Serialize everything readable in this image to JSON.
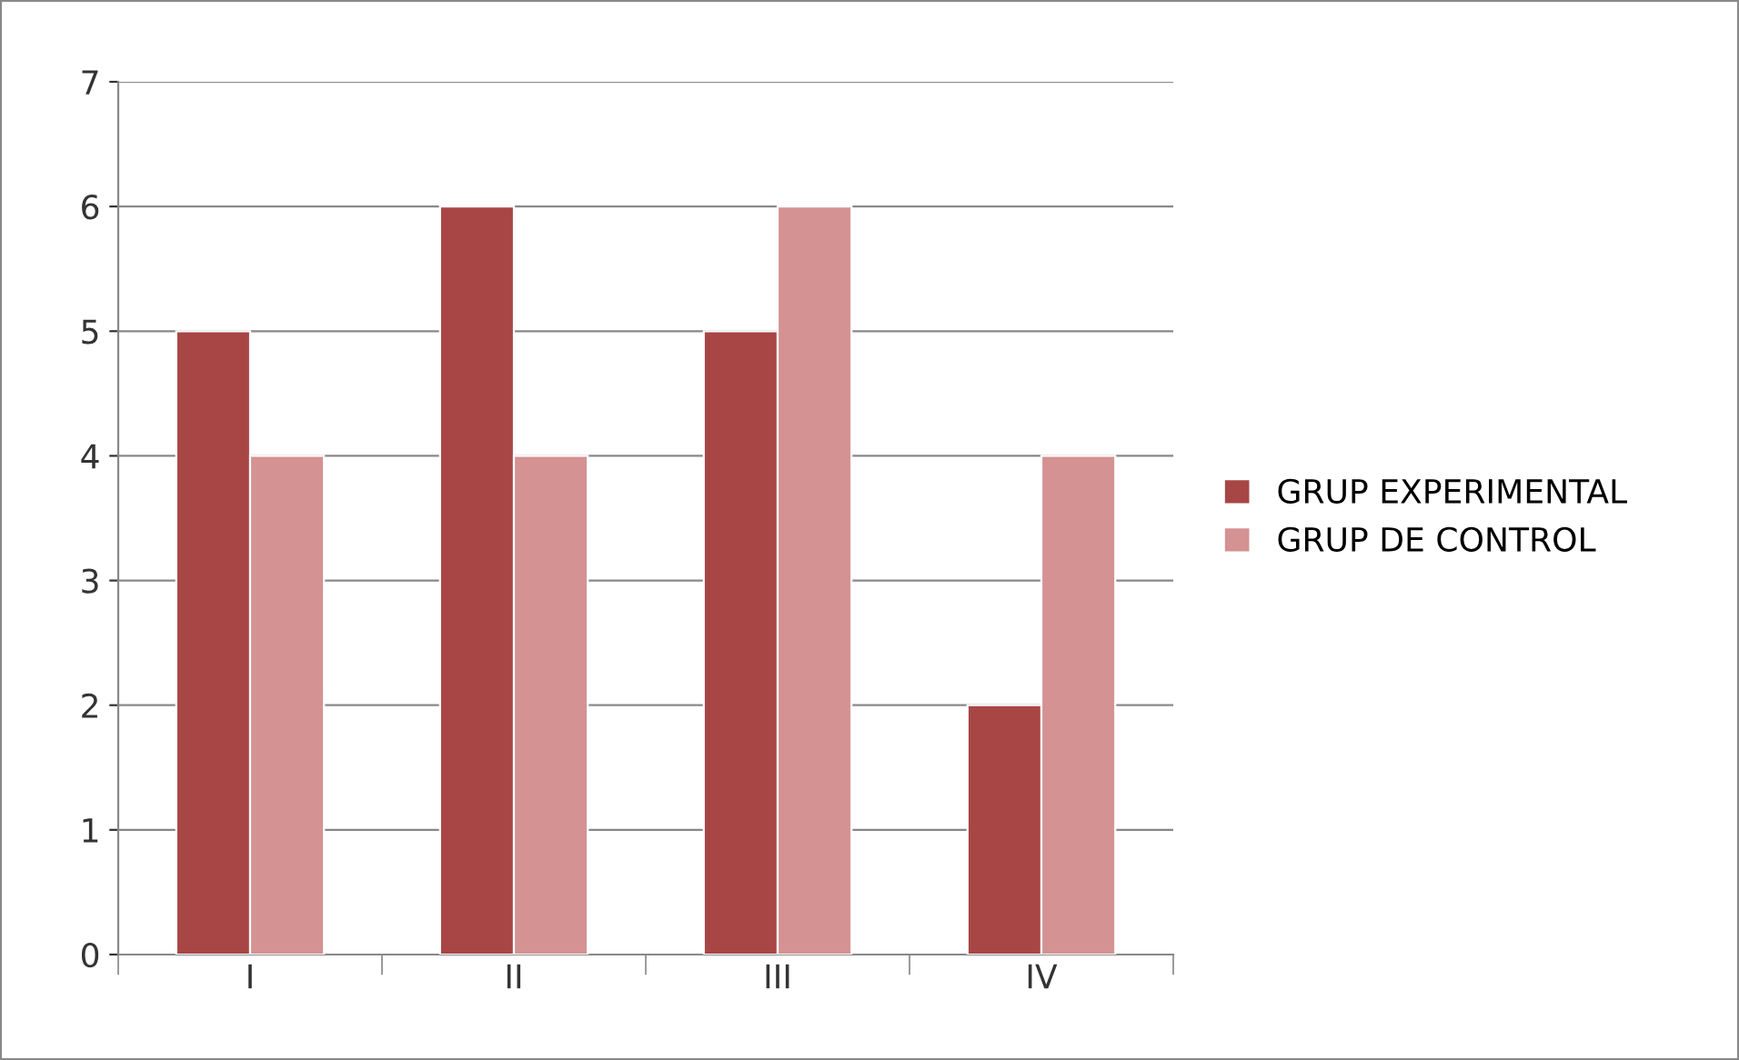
{
  "chart_data": {
    "type": "bar",
    "categories": [
      "I",
      "II",
      "III",
      "IV"
    ],
    "series": [
      {
        "name": "GRUP EXPERIMENTAL",
        "color": "#a84646",
        "values": [
          5,
          6,
          5,
          2
        ]
      },
      {
        "name": "GRUP DE CONTROL",
        "color": "#d49292",
        "values": [
          4,
          4,
          6,
          4
        ]
      }
    ],
    "ylim": [
      0,
      7
    ],
    "yticks": [
      0,
      1,
      2,
      3,
      4,
      5,
      6,
      7
    ],
    "grid": "y",
    "legend": "right"
  }
}
